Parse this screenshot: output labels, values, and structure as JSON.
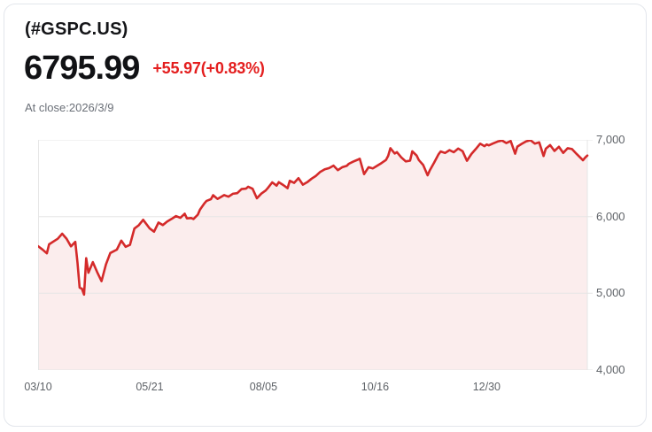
{
  "header": {
    "symbol": "(#GSPC.US)",
    "price": "6795.99",
    "change": "+55.97(+0.83%)",
    "as_of": "At close:2026/3/9"
  },
  "colors": {
    "line": "#d42a2a",
    "fill": "rgba(214,48,48,0.085)",
    "change_text": "#e41e1e",
    "grid": "#e6e6e6",
    "axis_text": "#5f6368",
    "card_border": "#e3e6ec"
  },
  "chart_data": {
    "type": "area",
    "title": "(#GSPC.US) price history, 2025/3/10 - 2026/3/9",
    "xlabel": "",
    "ylabel": "",
    "ylim": [
      4000,
      7000
    ],
    "x_domain_days": [
      0,
      251
    ],
    "grid": "horizontal",
    "legend": "none",
    "y_ticks": [
      "7,000",
      "6,000",
      "5,000",
      "4,000"
    ],
    "y_tick_values": [
      7000,
      6000,
      5000,
      4000
    ],
    "x_tick_labels": [
      "03/10",
      "05/21",
      "08/05",
      "10/16",
      "12/30"
    ],
    "x_tick_days": [
      0,
      51,
      103,
      154,
      205
    ],
    "series": [
      {
        "name": "#GSPC.US",
        "points": [
          [
            0,
            5614
          ],
          [
            2,
            5572
          ],
          [
            4,
            5521
          ],
          [
            5,
            5639
          ],
          [
            7,
            5675
          ],
          [
            9,
            5711
          ],
          [
            11,
            5777
          ],
          [
            13,
            5712
          ],
          [
            15,
            5612
          ],
          [
            17,
            5671
          ],
          [
            18,
            5397
          ],
          [
            19,
            5074
          ],
          [
            20,
            5062
          ],
          [
            21,
            4983
          ],
          [
            22,
            5457
          ],
          [
            23,
            5268
          ],
          [
            25,
            5406
          ],
          [
            27,
            5276
          ],
          [
            29,
            5158
          ],
          [
            31,
            5376
          ],
          [
            33,
            5525
          ],
          [
            36,
            5569
          ],
          [
            38,
            5687
          ],
          [
            40,
            5606
          ],
          [
            42,
            5632
          ],
          [
            44,
            5844
          ],
          [
            46,
            5886
          ],
          [
            48,
            5958
          ],
          [
            51,
            5845
          ],
          [
            53,
            5803
          ],
          [
            55,
            5922
          ],
          [
            57,
            5889
          ],
          [
            59,
            5936
          ],
          [
            61,
            5970
          ],
          [
            63,
            6006
          ],
          [
            65,
            5983
          ],
          [
            67,
            6038
          ],
          [
            68,
            5977
          ],
          [
            70,
            5981
          ],
          [
            71,
            5968
          ],
          [
            73,
            6025
          ],
          [
            74,
            6092
          ],
          [
            76,
            6173
          ],
          [
            77,
            6205
          ],
          [
            79,
            6227
          ],
          [
            80,
            6279
          ],
          [
            82,
            6230
          ],
          [
            84,
            6263
          ],
          [
            85,
            6280
          ],
          [
            87,
            6259
          ],
          [
            89,
            6297
          ],
          [
            91,
            6305
          ],
          [
            93,
            6359
          ],
          [
            95,
            6364
          ],
          [
            96,
            6390
          ],
          [
            98,
            6363
          ],
          [
            100,
            6238
          ],
          [
            102,
            6300
          ],
          [
            104,
            6340
          ],
          [
            105,
            6373
          ],
          [
            107,
            6446
          ],
          [
            109,
            6403
          ],
          [
            110,
            6449
          ],
          [
            112,
            6411
          ],
          [
            114,
            6370
          ],
          [
            115,
            6467
          ],
          [
            117,
            6439
          ],
          [
            119,
            6502
          ],
          [
            121,
            6416
          ],
          [
            123,
            6448
          ],
          [
            125,
            6495
          ],
          [
            127,
            6532
          ],
          [
            129,
            6584
          ],
          [
            131,
            6616
          ],
          [
            133,
            6632
          ],
          [
            135,
            6664
          ],
          [
            137,
            6605
          ],
          [
            139,
            6644
          ],
          [
            141,
            6661
          ],
          [
            142,
            6689
          ],
          [
            144,
            6716
          ],
          [
            146,
            6740
          ],
          [
            147,
            6754
          ],
          [
            149,
            6553
          ],
          [
            151,
            6644
          ],
          [
            153,
            6629
          ],
          [
            155,
            6664
          ],
          [
            157,
            6699
          ],
          [
            159,
            6738
          ],
          [
            160,
            6792
          ],
          [
            161,
            6891
          ],
          [
            163,
            6822
          ],
          [
            164,
            6840
          ],
          [
            166,
            6772
          ],
          [
            168,
            6720
          ],
          [
            170,
            6729
          ],
          [
            171,
            6851
          ],
          [
            173,
            6796
          ],
          [
            174,
            6737
          ],
          [
            176,
            6672
          ],
          [
            178,
            6539
          ],
          [
            179,
            6603
          ],
          [
            181,
            6705
          ],
          [
            183,
            6812
          ],
          [
            184,
            6849
          ],
          [
            186,
            6829
          ],
          [
            188,
            6866
          ],
          [
            190,
            6840
          ],
          [
            192,
            6887
          ],
          [
            194,
            6852
          ],
          [
            196,
            6728
          ],
          [
            198,
            6815
          ],
          [
            200,
            6880
          ],
          [
            202,
            6950
          ],
          [
            204,
            6918
          ],
          [
            205,
            6940
          ],
          [
            206,
            6928
          ],
          [
            208,
            6955
          ],
          [
            210,
            6978
          ],
          [
            212,
            6992
          ],
          [
            214,
            6958
          ],
          [
            216,
            6985
          ],
          [
            218,
            6820
          ],
          [
            219,
            6912
          ],
          [
            221,
            6948
          ],
          [
            223,
            6980
          ],
          [
            225,
            6995
          ],
          [
            227,
            6952
          ],
          [
            229,
            6968
          ],
          [
            231,
            6790
          ],
          [
            232,
            6885
          ],
          [
            234,
            6932
          ],
          [
            236,
            6856
          ],
          [
            238,
            6910
          ],
          [
            240,
            6830
          ],
          [
            242,
            6892
          ],
          [
            244,
            6880
          ],
          [
            246,
            6820
          ],
          [
            248,
            6762
          ],
          [
            249,
            6735
          ],
          [
            250,
            6768
          ],
          [
            251,
            6796
          ]
        ]
      }
    ]
  }
}
